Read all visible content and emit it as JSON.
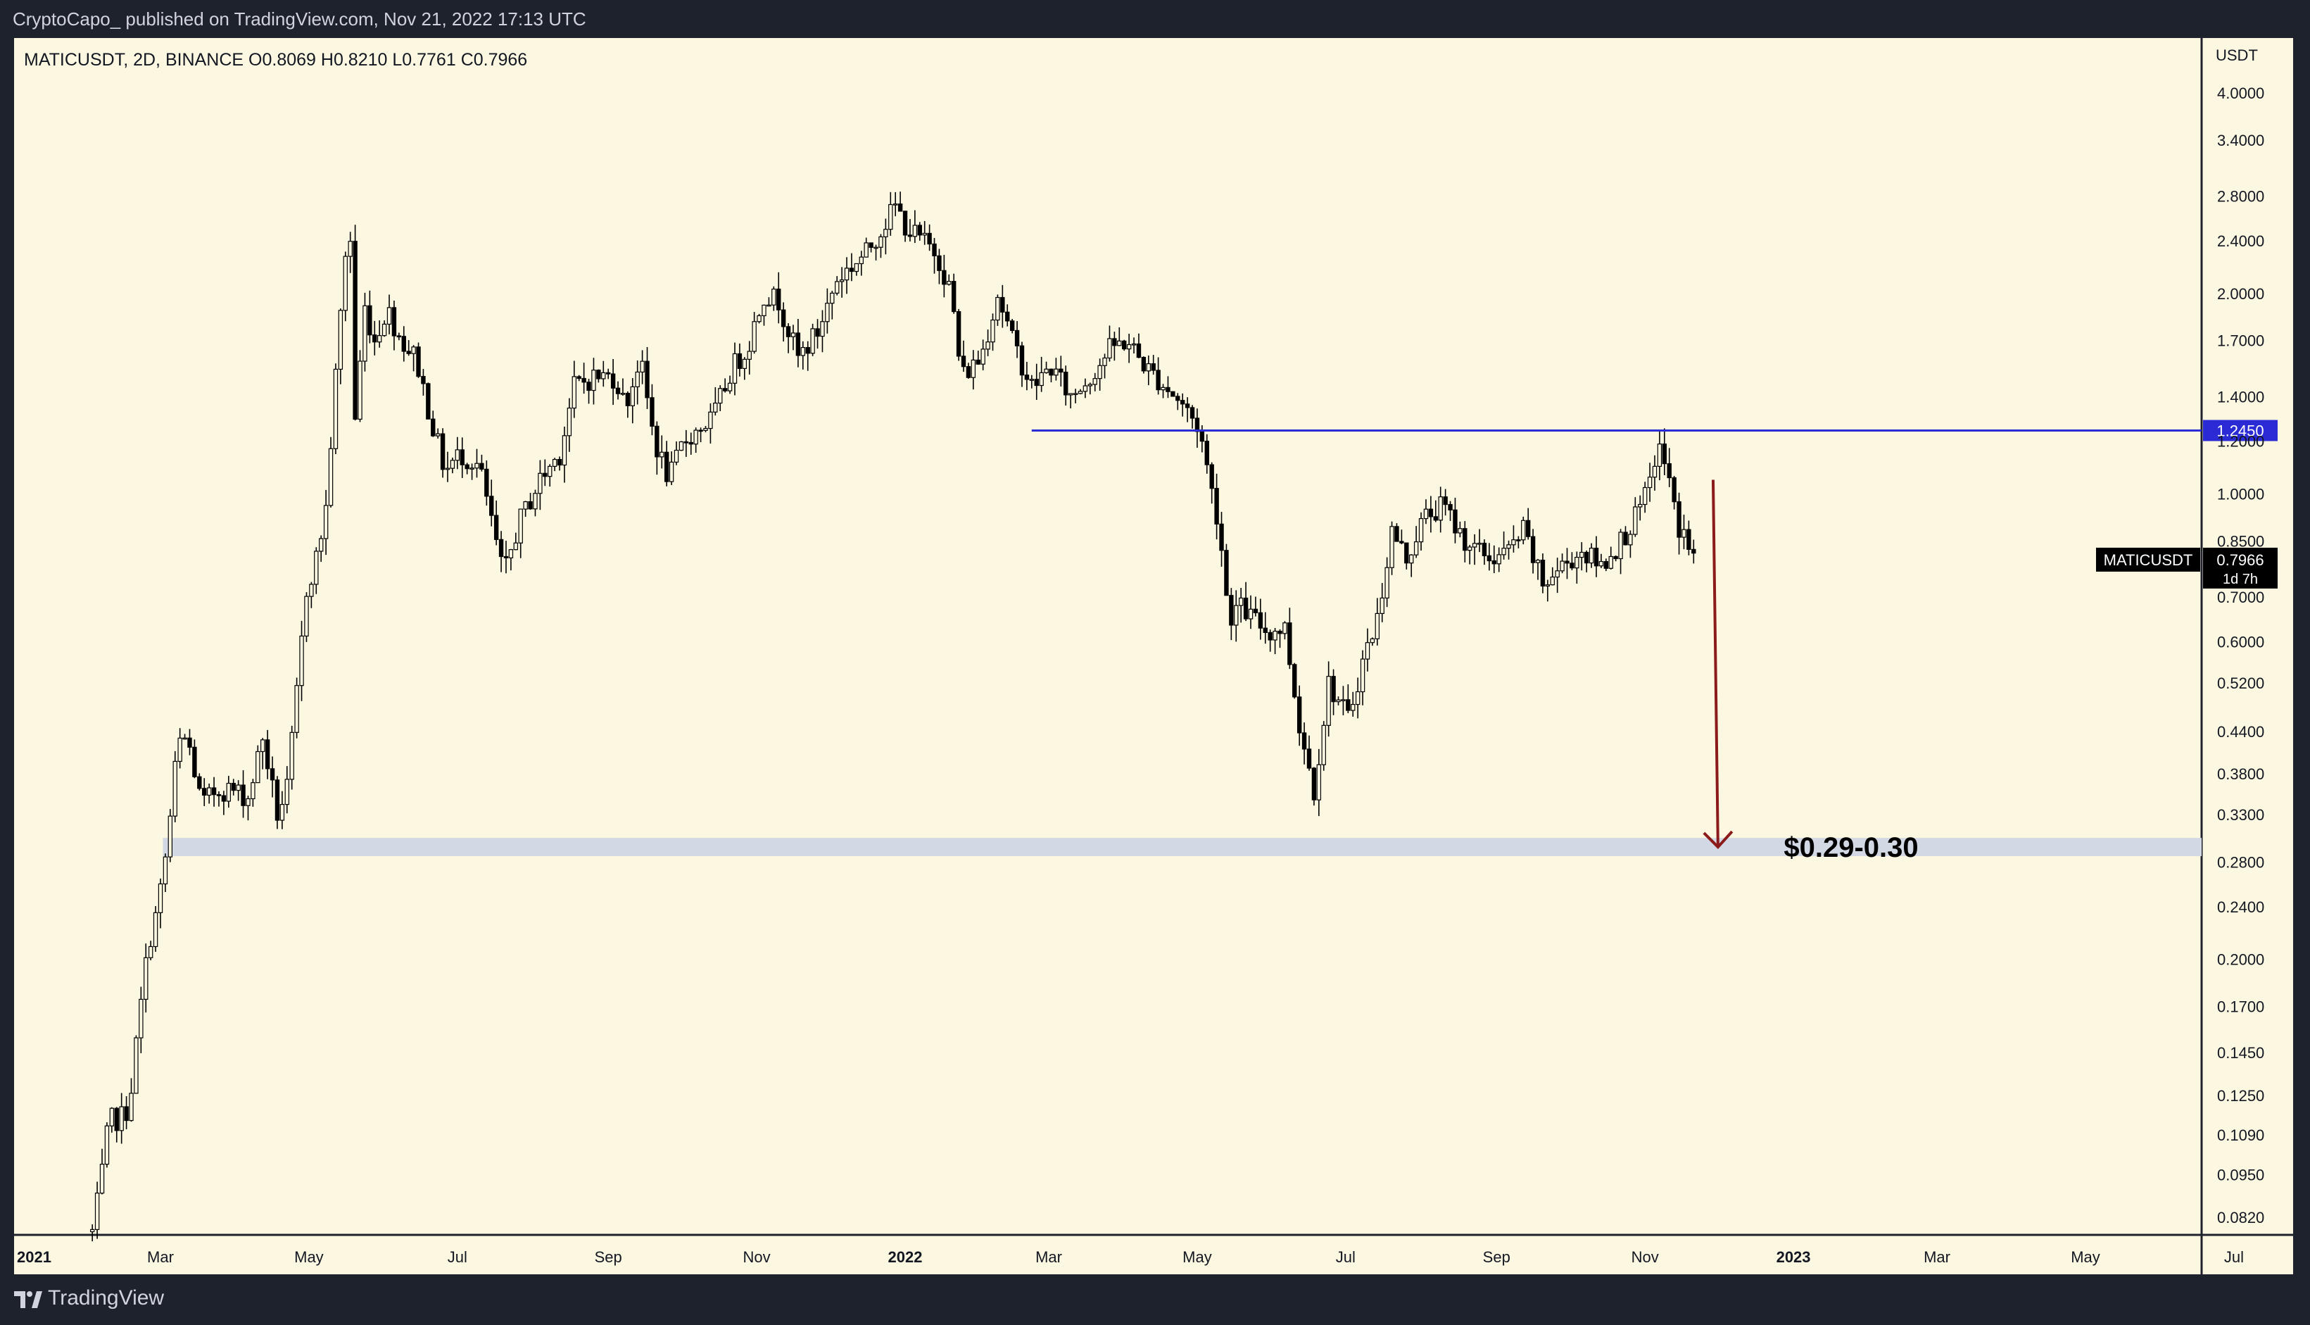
{
  "header": {
    "publish_info": "CryptoCapo_ published on TradingView.com, Nov 21, 2022 17:13 UTC"
  },
  "chart_header": {
    "symbol": "MATICUSDT, 2D, BINANCE",
    "open": "O0.8069",
    "high": "H0.8210",
    "low": "L0.7761",
    "close": "C0.7966"
  },
  "footer": {
    "brand": "TradingView"
  },
  "colors": {
    "background": "#fcf7e0",
    "candle": "#000000",
    "resistance_line": "#2b2bd6",
    "support_zone": "#d3d9e4",
    "arrow": "#8b1a1a",
    "frame": "#1e222d"
  },
  "chart_data": {
    "type": "candlestick",
    "y_axis_unit": "USDT",
    "y_scale": "log",
    "ylim": [
      0.077,
      4.25
    ],
    "y_ticks": [
      "4.0000",
      "3.4000",
      "2.8000",
      "2.4000",
      "2.0000",
      "1.7000",
      "1.4000",
      "1.2000",
      "1.0000",
      "0.8500",
      "0.7000",
      "0.6000",
      "0.5200",
      "0.4400",
      "0.3800",
      "0.3300",
      "0.2800",
      "0.2400",
      "0.2000",
      "0.1700",
      "0.1450",
      "0.1250",
      "0.1090",
      "0.0950",
      "0.0820"
    ],
    "x_ticks": [
      {
        "label": "2021",
        "bold": true
      },
      {
        "label": "Mar"
      },
      {
        "label": "May"
      },
      {
        "label": "Jul"
      },
      {
        "label": "Sep"
      },
      {
        "label": "Nov"
      },
      {
        "label": "2022",
        "bold": true
      },
      {
        "label": "Mar"
      },
      {
        "label": "May"
      },
      {
        "label": "Jul"
      },
      {
        "label": "Sep"
      },
      {
        "label": "Nov"
      },
      {
        "label": "2023",
        "bold": true
      },
      {
        "label": "Mar"
      },
      {
        "label": "May"
      },
      {
        "label": "Jul"
      }
    ],
    "price_path": [
      [
        "2021-02-01",
        0.078
      ],
      [
        "2021-02-04",
        0.09
      ],
      [
        "2021-02-08",
        0.115
      ],
      [
        "2021-02-12",
        0.115
      ],
      [
        "2021-02-16",
        0.12
      ],
      [
        "2021-02-20",
        0.16
      ],
      [
        "2021-02-24",
        0.21
      ],
      [
        "2021-02-28",
        0.24
      ],
      [
        "2021-03-04",
        0.3
      ],
      [
        "2021-03-08",
        0.42
      ],
      [
        "2021-03-12",
        0.43
      ],
      [
        "2021-03-18",
        0.34
      ],
      [
        "2021-03-24",
        0.36
      ],
      [
        "2021-03-30",
        0.36
      ],
      [
        "2021-04-06",
        0.35
      ],
      [
        "2021-04-12",
        0.43
      ],
      [
        "2021-04-18",
        0.33
      ],
      [
        "2021-04-22",
        0.36
      ],
      [
        "2021-04-26",
        0.5
      ],
      [
        "2021-04-30",
        0.72
      ],
      [
        "2021-05-04",
        0.8
      ],
      [
        "2021-05-08",
        0.95
      ],
      [
        "2021-05-12",
        1.5
      ],
      [
        "2021-05-16",
        2.3
      ],
      [
        "2021-05-18",
        2.4
      ],
      [
        "2021-05-20",
        1.3
      ],
      [
        "2021-05-24",
        1.9
      ],
      [
        "2021-05-28",
        1.7
      ],
      [
        "2021-06-02",
        1.9
      ],
      [
        "2021-06-08",
        1.7
      ],
      [
        "2021-06-14",
        1.6
      ],
      [
        "2021-06-20",
        1.3
      ],
      [
        "2021-06-26",
        1.08
      ],
      [
        "2021-07-02",
        1.15
      ],
      [
        "2021-07-10",
        1.1
      ],
      [
        "2021-07-20",
        0.75
      ],
      [
        "2021-07-26",
        0.9
      ],
      [
        "2021-08-04",
        1.05
      ],
      [
        "2021-08-12",
        1.15
      ],
      [
        "2021-08-18",
        1.45
      ],
      [
        "2021-08-26",
        1.5
      ],
      [
        "2021-09-04",
        1.5
      ],
      [
        "2021-09-08",
        1.35
      ],
      [
        "2021-09-14",
        1.6
      ],
      [
        "2021-09-20",
        1.2
      ],
      [
        "2021-09-26",
        1.05
      ],
      [
        "2021-10-02",
        1.2
      ],
      [
        "2021-10-08",
        1.25
      ],
      [
        "2021-10-14",
        1.3
      ],
      [
        "2021-10-22",
        1.55
      ],
      [
        "2021-10-28",
        1.65
      ],
      [
        "2021-11-04",
        2.0
      ],
      [
        "2021-11-10",
        1.95
      ],
      [
        "2021-11-18",
        1.6
      ],
      [
        "2021-11-26",
        1.75
      ],
      [
        "2021-12-04",
        2.1
      ],
      [
        "2021-12-10",
        2.2
      ],
      [
        "2021-12-16",
        2.3
      ],
      [
        "2021-12-22",
        2.5
      ],
      [
        "2021-12-28",
        2.7
      ],
      [
        "2022-01-02",
        2.5
      ],
      [
        "2022-01-08",
        2.4
      ],
      [
        "2022-01-14",
        2.3
      ],
      [
        "2022-01-20",
        2.0
      ],
      [
        "2022-01-24",
        1.5
      ],
      [
        "2022-02-01",
        1.6
      ],
      [
        "2022-02-08",
        2.0
      ],
      [
        "2022-02-14",
        1.7
      ],
      [
        "2022-02-22",
        1.45
      ],
      [
        "2022-03-02",
        1.55
      ],
      [
        "2022-03-10",
        1.4
      ],
      [
        "2022-03-18",
        1.5
      ],
      [
        "2022-03-26",
        1.65
      ],
      [
        "2022-04-02",
        1.7
      ],
      [
        "2022-04-10",
        1.55
      ],
      [
        "2022-04-18",
        1.45
      ],
      [
        "2022-04-26",
        1.35
      ],
      [
        "2022-05-02",
        1.25
      ],
      [
        "2022-05-06",
        1.05
      ],
      [
        "2022-05-10",
        0.9
      ],
      [
        "2022-05-14",
        0.65
      ],
      [
        "2022-05-18",
        0.68
      ],
      [
        "2022-05-24",
        0.65
      ],
      [
        "2022-05-30",
        0.62
      ],
      [
        "2022-06-06",
        0.63
      ],
      [
        "2022-06-12",
        0.45
      ],
      [
        "2022-06-18",
        0.36
      ],
      [
        "2022-06-24",
        0.52
      ],
      [
        "2022-07-02",
        0.46
      ],
      [
        "2022-07-08",
        0.56
      ],
      [
        "2022-07-14",
        0.65
      ],
      [
        "2022-07-20",
        0.88
      ],
      [
        "2022-07-26",
        0.8
      ],
      [
        "2022-08-02",
        0.92
      ],
      [
        "2022-08-10",
        0.96
      ],
      [
        "2022-08-18",
        0.86
      ],
      [
        "2022-08-24",
        0.82
      ],
      [
        "2022-08-30",
        0.8
      ],
      [
        "2022-09-06",
        0.82
      ],
      [
        "2022-09-12",
        0.88
      ],
      [
        "2022-09-20",
        0.73
      ],
      [
        "2022-09-28",
        0.78
      ],
      [
        "2022-10-06",
        0.82
      ],
      [
        "2022-10-14",
        0.78
      ],
      [
        "2022-10-22",
        0.85
      ],
      [
        "2022-10-28",
        0.92
      ],
      [
        "2022-11-02",
        1.0
      ],
      [
        "2022-11-06",
        1.18
      ],
      [
        "2022-11-10",
        1.1
      ],
      [
        "2022-11-14",
        0.9
      ],
      [
        "2022-11-18",
        0.86
      ],
      [
        "2022-11-21",
        0.7966
      ]
    ],
    "annotations": {
      "resistance_level": 1.245,
      "resistance_label": "1.2450",
      "resistance_start": "2022-02-22",
      "support_zone": [
        0.29,
        0.3
      ],
      "support_zone_start": "2021-03-02",
      "support_label": "$0.29-0.30",
      "projection_from": [
        "2022-11-29",
        1.05
      ],
      "projection_to": [
        "2022-12-01",
        0.295
      ],
      "last_price_label": "0.7966",
      "last_price_symbol": "MATICUSDT",
      "countdown": "1d 7h"
    }
  }
}
